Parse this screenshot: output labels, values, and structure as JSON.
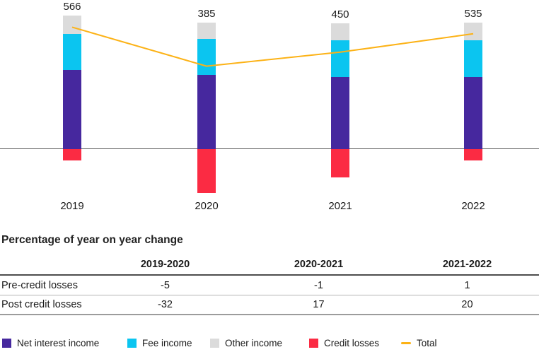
{
  "chart_data": {
    "type": "bar",
    "variant": "stacked-bars-with-total-line",
    "categories": [
      "2019",
      "2020",
      "2021",
      "2022"
    ],
    "series": [
      {
        "name": "Net interest income",
        "color": "#46289E",
        "values": [
          368,
          345,
          335,
          335
        ]
      },
      {
        "name": "Fee income",
        "color": "#0BC5F0",
        "values": [
          168,
          168,
          170,
          170
        ]
      },
      {
        "name": "Other income",
        "color": "#DBDBDB",
        "values": [
          83,
          75,
          77,
          83
        ]
      },
      {
        "name": "Credit losses",
        "color": "#FB2B43",
        "values": [
          -53,
          -203,
          -132,
          -53
        ]
      }
    ],
    "line": {
      "name": "Total",
      "color": "#FCB216",
      "values": [
        566,
        385,
        450,
        535
      ]
    },
    "bar_total_labels": [
      "566",
      "385",
      "450",
      "535"
    ],
    "baseline_value": 0,
    "grid": "off",
    "axis_labels": "none",
    "legend_position": "bottom"
  },
  "table": {
    "title": "Percentage of year on year change",
    "columns": [
      "2019-2020",
      "2020-2021",
      "2021-2022"
    ],
    "rows": [
      {
        "label": "Pre-credit losses",
        "values": [
          "-5",
          "-1",
          "1"
        ]
      },
      {
        "label": "Post credit losses",
        "values": [
          "-32",
          "17",
          "20"
        ]
      }
    ]
  },
  "legend": {
    "items": [
      {
        "label": "Net interest income",
        "color": "#46289E",
        "shape": "square"
      },
      {
        "label": "Fee income",
        "color": "#0BC5F0",
        "shape": "square"
      },
      {
        "label": "Other income",
        "color": "#DBDBDB",
        "shape": "square"
      },
      {
        "label": "Credit losses",
        "color": "#FB2B43",
        "shape": "square"
      },
      {
        "label": "Total",
        "color": "#FCB216",
        "shape": "line"
      }
    ]
  },
  "colors": {
    "baseline": "#595959",
    "header_rule": "#4d4d4d",
    "row_rule": "#b3b3b3",
    "bottom_rule": "#9c9c9c",
    "text": "#1a1a1a"
  }
}
